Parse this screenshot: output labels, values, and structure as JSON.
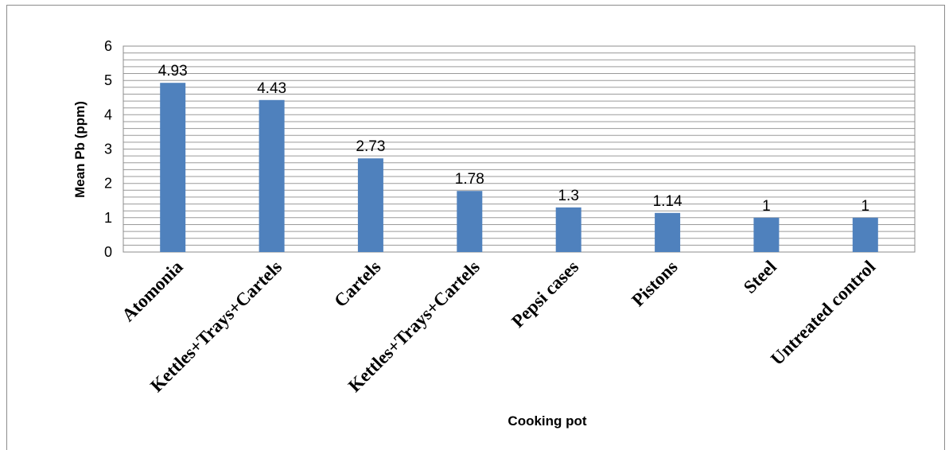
{
  "chart_data": {
    "type": "bar",
    "title": "",
    "xlabel": "Cooking pot",
    "ylabel": "Mean Pb (ppm)",
    "ylim": [
      0,
      6
    ],
    "yticks": [
      "0",
      "1",
      "2",
      "3",
      "4",
      "5",
      "6"
    ],
    "grid": true,
    "legend": "none",
    "bar_color": "#4f81bd",
    "categories": [
      "Atomonia",
      "Kettles+Trays+Cartels",
      "Cartels",
      "Kettles+Trays+Cartels",
      "Pepsi cases",
      "Pistons",
      "Steel",
      "Untreated control"
    ],
    "values": [
      4.93,
      4.43,
      2.73,
      1.78,
      1.3,
      1.14,
      1,
      1
    ],
    "data_labels": [
      "4.93",
      "4.43",
      "2.73",
      "1.78",
      "1.3",
      "1.14",
      "1",
      "1"
    ]
  }
}
